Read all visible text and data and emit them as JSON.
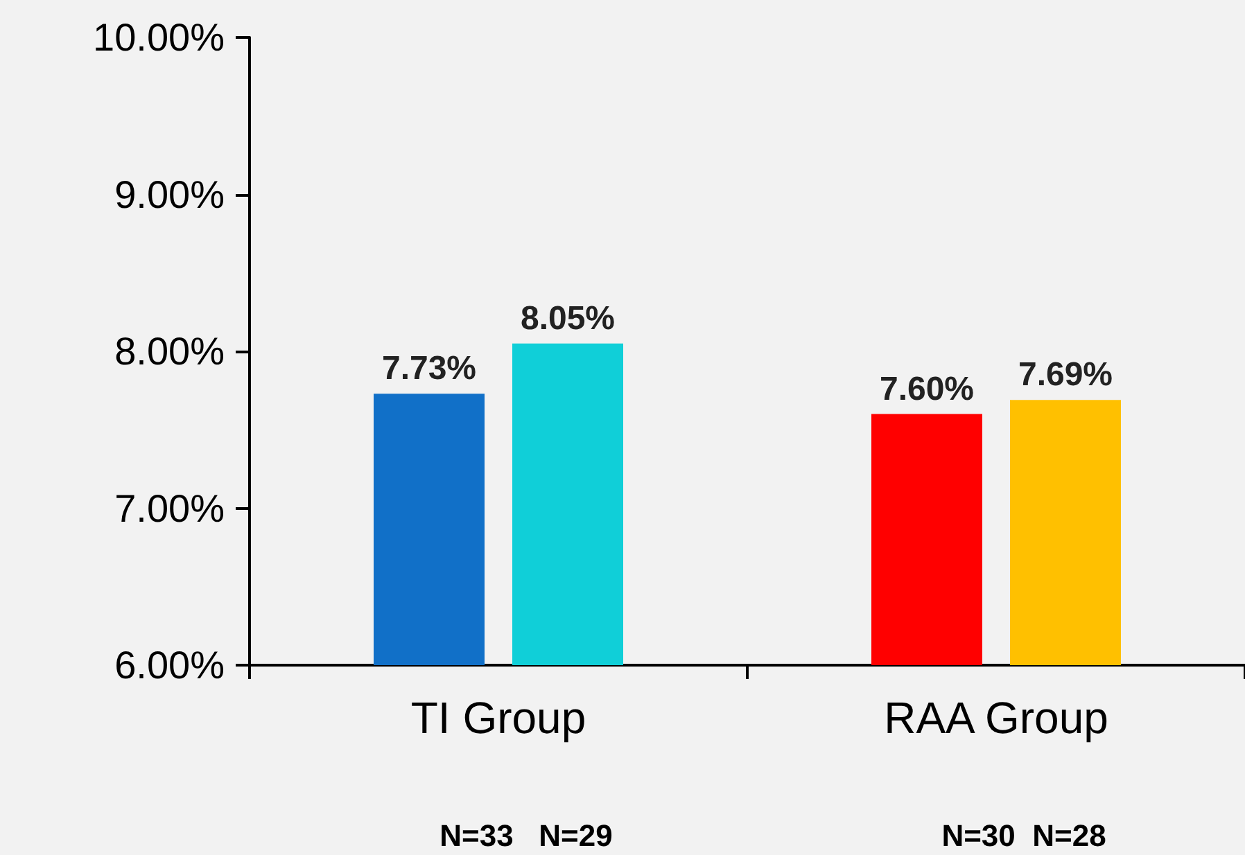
{
  "chart_data": {
    "type": "bar",
    "categories": [
      "TI Group",
      "RAA Group"
    ],
    "series": [
      {
        "values": [
          7.73,
          7.6
        ],
        "colors": [
          "#1170c8",
          "#ff0000"
        ],
        "value_labels": [
          "7.73%",
          "7.60%"
        ]
      },
      {
        "values": [
          8.05,
          7.69
        ],
        "colors": [
          "#10cfd8",
          "#ffc000"
        ],
        "value_labels": [
          "8.05%",
          "7.69%"
        ]
      }
    ],
    "ylim": [
      6,
      10
    ],
    "yticks": [
      {
        "value": 6,
        "label": "6.00%"
      },
      {
        "value": 7,
        "label": "7.00%"
      },
      {
        "value": 8,
        "label": "8.00%"
      },
      {
        "value": 9,
        "label": "9.00%"
      },
      {
        "value": 10,
        "label": "10.00%"
      }
    ],
    "grid": false,
    "annotations": [
      "N=33   N=29",
      "N=30  N=28"
    ]
  }
}
